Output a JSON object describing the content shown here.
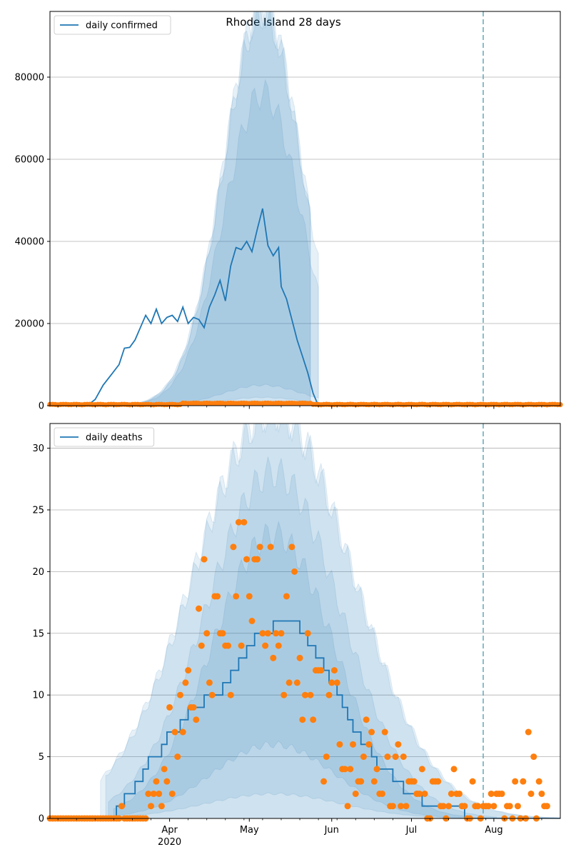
{
  "figure": {
    "title": "Rhode Island 28 days",
    "colors": {
      "fit_line": "#1f77b4",
      "band": "#1f77b4",
      "observed": "#ff7f0e",
      "vline": "#5fa8b8",
      "grid": "#b0b0b0"
    }
  },
  "chart_data": [
    {
      "type": "line",
      "title": "Rhode Island 28 days",
      "xlabel": "",
      "ylabel": "",
      "x_axis": "date",
      "x_start": "2020-02-16",
      "x_end": "2020-08-26",
      "ylim": [
        0,
        96000
      ],
      "yticks": [
        0,
        20000,
        40000,
        60000,
        80000
      ],
      "xticks": [
        {
          "date": "2020-04-01",
          "label": "Apr",
          "sublabel": "2020"
        },
        {
          "date": "2020-05-01",
          "label": "May",
          "sublabel": ""
        },
        {
          "date": "2020-06-01",
          "label": "Jun",
          "sublabel": ""
        },
        {
          "date": "2020-07-01",
          "label": "Jul",
          "sublabel": ""
        },
        {
          "date": "2020-08-01",
          "label": "Aug",
          "sublabel": ""
        }
      ],
      "grid": "y",
      "legend": {
        "position": "top-left",
        "entries": [
          "daily confirmed"
        ]
      },
      "vline_date": "2020-07-28",
      "series": [
        {
          "name": "daily confirmed",
          "kind": "line",
          "points": [
            [
              "2020-03-01",
              0
            ],
            [
              "2020-03-04",
              1500
            ],
            [
              "2020-03-07",
              5000
            ],
            [
              "2020-03-10",
              7500
            ],
            [
              "2020-03-13",
              10000
            ],
            [
              "2020-03-15",
              14000
            ],
            [
              "2020-03-17",
              14200
            ],
            [
              "2020-03-19",
              16000
            ],
            [
              "2020-03-21",
              19000
            ],
            [
              "2020-03-23",
              22000
            ],
            [
              "2020-03-25",
              20000
            ],
            [
              "2020-03-27",
              23500
            ],
            [
              "2020-03-29",
              20000
            ],
            [
              "2020-03-31",
              21500
            ],
            [
              "2020-04-02",
              22000
            ],
            [
              "2020-04-04",
              20500
            ],
            [
              "2020-04-06",
              24000
            ],
            [
              "2020-04-08",
              20000
            ],
            [
              "2020-04-10",
              21500
            ],
            [
              "2020-04-12",
              21000
            ],
            [
              "2020-04-14",
              19000
            ],
            [
              "2020-04-16",
              24000
            ],
            [
              "2020-04-18",
              27000
            ],
            [
              "2020-04-20",
              30500
            ],
            [
              "2020-04-22",
              25500
            ],
            [
              "2020-04-24",
              34000
            ],
            [
              "2020-04-26",
              38500
            ],
            [
              "2020-04-28",
              38000
            ],
            [
              "2020-04-30",
              40000
            ],
            [
              "2020-05-02",
              37500
            ],
            [
              "2020-05-04",
              43000
            ],
            [
              "2020-05-06",
              48000
            ],
            [
              "2020-05-08",
              39000
            ],
            [
              "2020-05-10",
              36500
            ],
            [
              "2020-05-12",
              38500
            ],
            [
              "2020-05-13",
              29000
            ],
            [
              "2020-05-15",
              26000
            ],
            [
              "2020-05-17",
              21000
            ],
            [
              "2020-05-19",
              16000
            ],
            [
              "2020-05-21",
              12000
            ],
            [
              "2020-05-23",
              8000
            ],
            [
              "2020-05-25",
              3000
            ],
            [
              "2020-05-27",
              0
            ]
          ]
        },
        {
          "name": "observed daily confirmed",
          "kind": "scatter",
          "values_by_date": {
            "start": "2020-02-16",
            "end": "2020-08-26",
            "approx_value": 200,
            "peak": 700
          }
        }
      ],
      "bands": [
        {
          "name": "outer",
          "upper_peak": 97000,
          "lower": 0,
          "start": "2020-02-29",
          "end": "2020-05-24"
        },
        {
          "name": "middle-outer",
          "upper_peak": 97000,
          "lower": 0,
          "start": "2020-03-01",
          "end": "2020-05-24"
        },
        {
          "name": "middle-inner",
          "upper_peak": 96000,
          "lower": 2000,
          "start": "2020-03-02",
          "end": "2020-05-27"
        },
        {
          "name": "inner",
          "upper_peak": 76000,
          "lower": 5000,
          "start": "2020-03-03",
          "end": "2020-05-27"
        }
      ]
    },
    {
      "type": "line",
      "title": "",
      "xlabel": "",
      "ylabel": "",
      "x_axis": "date",
      "x_start": "2020-02-16",
      "x_end": "2020-08-26",
      "ylim": [
        0,
        32
      ],
      "yticks": [
        0,
        5,
        10,
        15,
        20,
        25,
        30
      ],
      "xticks": [
        {
          "date": "2020-04-01",
          "label": "Apr",
          "sublabel": "2020"
        },
        {
          "date": "2020-05-01",
          "label": "May",
          "sublabel": ""
        },
        {
          "date": "2020-06-01",
          "label": "Jun",
          "sublabel": ""
        },
        {
          "date": "2020-07-01",
          "label": "Jul",
          "sublabel": ""
        },
        {
          "date": "2020-08-01",
          "label": "Aug",
          "sublabel": ""
        }
      ],
      "grid": "y",
      "legend": {
        "position": "top-left",
        "entries": [
          "daily deaths"
        ]
      },
      "vline_date": "2020-07-28",
      "series": [
        {
          "name": "daily deaths",
          "kind": "step",
          "points": [
            [
              "2020-03-11",
              0
            ],
            [
              "2020-03-12",
              1
            ],
            [
              "2020-03-15",
              2
            ],
            [
              "2020-03-19",
              3
            ],
            [
              "2020-03-22",
              4
            ],
            [
              "2020-03-24",
              5
            ],
            [
              "2020-03-29",
              6
            ],
            [
              "2020-03-31",
              7
            ],
            [
              "2020-04-05",
              8
            ],
            [
              "2020-04-08",
              9
            ],
            [
              "2020-04-14",
              10
            ],
            [
              "2020-04-21",
              11
            ],
            [
              "2020-04-24",
              12
            ],
            [
              "2020-04-27",
              13
            ],
            [
              "2020-04-30",
              14
            ],
            [
              "2020-05-03",
              15
            ],
            [
              "2020-05-10",
              16
            ],
            [
              "2020-05-20",
              15
            ],
            [
              "2020-05-23",
              14
            ],
            [
              "2020-05-26",
              13
            ],
            [
              "2020-05-29",
              12
            ],
            [
              "2020-05-31",
              11
            ],
            [
              "2020-06-03",
              10
            ],
            [
              "2020-06-05",
              9
            ],
            [
              "2020-06-07",
              8
            ],
            [
              "2020-06-09",
              7
            ],
            [
              "2020-06-12",
              6
            ],
            [
              "2020-06-16",
              5
            ],
            [
              "2020-06-18",
              4
            ],
            [
              "2020-06-24",
              3
            ],
            [
              "2020-06-28",
              2
            ],
            [
              "2020-07-05",
              1
            ],
            [
              "2020-07-15",
              1
            ],
            [
              "2020-07-21",
              0
            ],
            [
              "2020-08-26",
              0
            ]
          ]
        },
        {
          "name": "observed daily deaths",
          "kind": "scatter",
          "start": "2020-02-16",
          "values": [
            0,
            0,
            0,
            0,
            0,
            0,
            0,
            0,
            0,
            0,
            0,
            0,
            0,
            0,
            0,
            0,
            0,
            0,
            0,
            0,
            0,
            0,
            0,
            0,
            0,
            0,
            0,
            1,
            0,
            0,
            0,
            0,
            0,
            0,
            0,
            0,
            0,
            2,
            1,
            2,
            3,
            2,
            1,
            4,
            3,
            9,
            2,
            7,
            5,
            10,
            7,
            11,
            12,
            9,
            9,
            8,
            17,
            14,
            21,
            15,
            11,
            10,
            18,
            18,
            15,
            15,
            14,
            14,
            10,
            22,
            18,
            24,
            14,
            24,
            21,
            18,
            16,
            21,
            21,
            22,
            15,
            14,
            15,
            22,
            13,
            15,
            14,
            15,
            10,
            18,
            11,
            22,
            20,
            11,
            13,
            8,
            10,
            15,
            10,
            8,
            12,
            12,
            12,
            3,
            5,
            10,
            11,
            12,
            11,
            6,
            4,
            4,
            1,
            4,
            6,
            2,
            3,
            3,
            5,
            8,
            6,
            7,
            3,
            4,
            2,
            2,
            7,
            5,
            1,
            1,
            5,
            6,
            1,
            5,
            1,
            3,
            3,
            3,
            2,
            2,
            4,
            2,
            0,
            0,
            3,
            3,
            3,
            1,
            1,
            0,
            1,
            2,
            4,
            2,
            2,
            1,
            1,
            0,
            0,
            3,
            1,
            1,
            0,
            1,
            1,
            1,
            2,
            1,
            2,
            2,
            2,
            0,
            1,
            1,
            0,
            3,
            1,
            0,
            3,
            0,
            7,
            2,
            5,
            0,
            3,
            2,
            1,
            1
          ]
        }
      ],
      "bands": [
        {
          "name": "outer",
          "upper_peak": 33,
          "lower": 0,
          "start": "2020-03-06",
          "end": "2020-08-26"
        },
        {
          "name": "middle-outer",
          "upper_peak": 33,
          "lower": 0,
          "start": "2020-03-08",
          "end": "2020-08-26"
        },
        {
          "name": "middle-inner",
          "upper_peak": 28,
          "lower": 2,
          "start": "2020-03-09",
          "end": "2020-08-02"
        },
        {
          "name": "inner",
          "upper_peak": 23,
          "lower": 6,
          "start": "2020-03-11",
          "end": "2020-07-22"
        }
      ]
    }
  ]
}
